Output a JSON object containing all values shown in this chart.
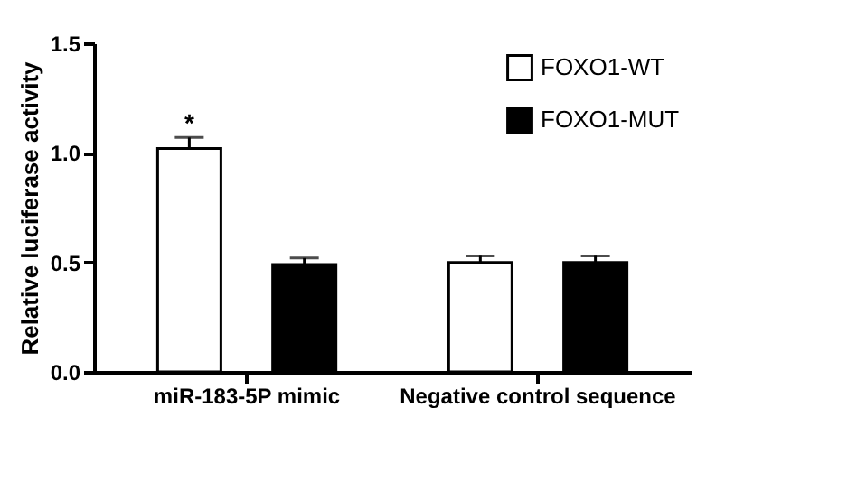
{
  "chart_data": {
    "type": "bar",
    "ylabel": "Relative luciferase activity",
    "categories": [
      "miR-183-5P mimic",
      "Negative control sequence"
    ],
    "series": [
      {
        "name": "FOXO1-WT",
        "color": "#ffffff",
        "values": [
          1.02,
          0.5
        ],
        "errors": [
          0.05,
          0.03
        ]
      },
      {
        "name": "FOXO1-MUT",
        "color": "#000000",
        "values": [
          0.49,
          0.5
        ],
        "errors": [
          0.03,
          0.03
        ]
      }
    ],
    "ylim": [
      0,
      1.5
    ],
    "yticks": [
      {
        "value": 0,
        "label": "0.0"
      },
      {
        "value": 0.5,
        "label": "0.5"
      },
      {
        "value": 1,
        "label": "1.0"
      },
      {
        "value": 1.5,
        "label": "1.5"
      }
    ],
    "annotations": [
      "*"
    ],
    "legend": "top right",
    "grid": false
  }
}
